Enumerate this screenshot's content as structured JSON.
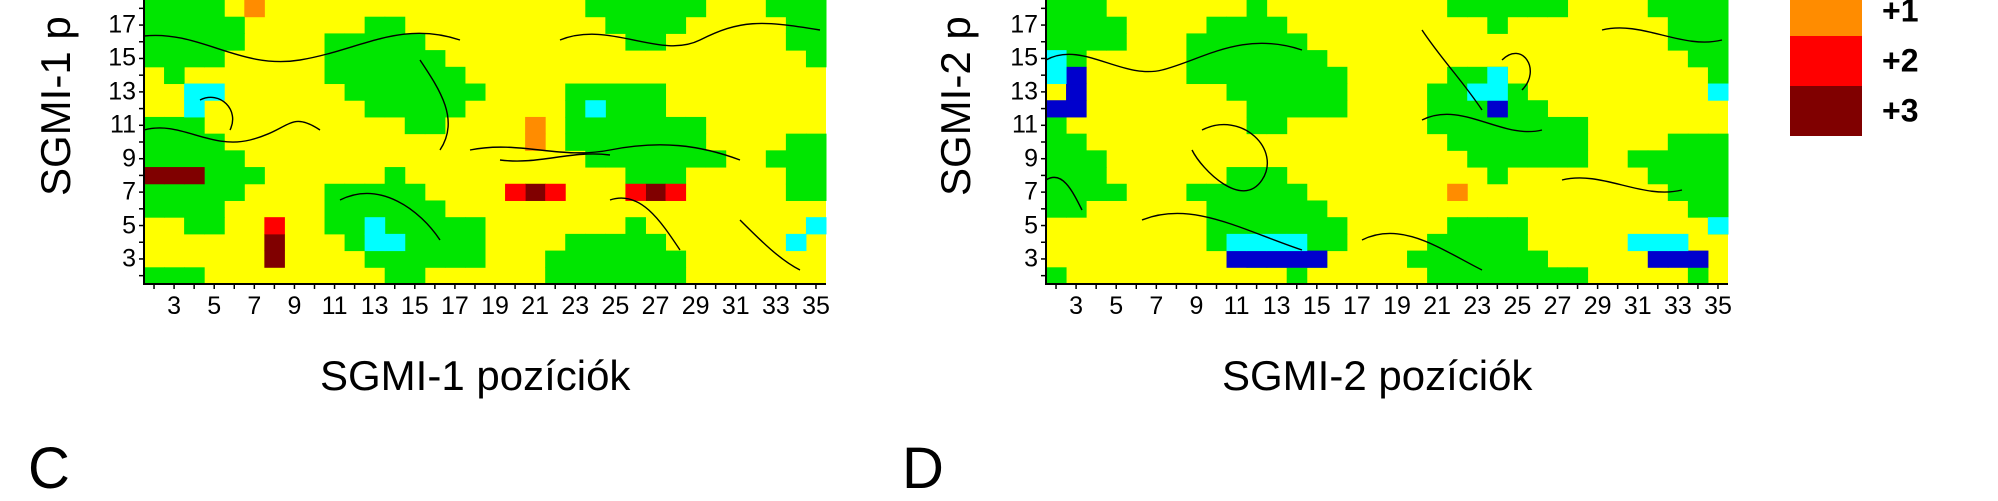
{
  "chart_data": [
    {
      "type": "heatmap",
      "xlabel": "SGMI-1 pozíciók",
      "ylabel": "SGMI-1 p",
      "xticks": [
        "3",
        "5",
        "7",
        "9",
        "11",
        "13",
        "15",
        "17",
        "19",
        "21",
        "23",
        "25",
        "27",
        "29",
        "31",
        "33",
        "35"
      ],
      "yticks": [
        "3",
        "5",
        "7",
        "9",
        "11",
        "13",
        "15",
        "17"
      ],
      "xlim": [
        2,
        35
      ],
      "ylim": [
        2,
        18
      ],
      "cells": [
        {
          "x": 8,
          "y": 3,
          "level": 3
        },
        {
          "x": 8,
          "y": 4,
          "level": 3
        },
        {
          "x": 8,
          "y": 5,
          "level": 2
        },
        {
          "x": 2,
          "y": 8,
          "level": 3
        },
        {
          "x": 3,
          "y": 8,
          "level": 3
        },
        {
          "x": 4,
          "y": 8,
          "level": 3
        },
        {
          "x": 21,
          "y": 7,
          "level": 3
        },
        {
          "x": 27,
          "y": 7,
          "level": 3
        },
        {
          "x": 20,
          "y": 7,
          "level": 2
        },
        {
          "x": 22,
          "y": 7,
          "level": 2
        },
        {
          "x": 26,
          "y": 7,
          "level": 2
        },
        {
          "x": 28,
          "y": 7,
          "level": 2
        },
        {
          "x": 21,
          "y": 10,
          "level": 1
        },
        {
          "x": 21,
          "y": 11,
          "level": 1
        },
        {
          "x": 7,
          "y": 18,
          "level": 1
        },
        {
          "x": 4,
          "y": 13,
          "level": -1
        },
        {
          "x": 5,
          "y": 13,
          "level": -1
        },
        {
          "x": 4,
          "y": 12,
          "level": -1
        },
        {
          "x": 13,
          "y": 4,
          "level": -1
        },
        {
          "x": 14,
          "y": 4,
          "level": -1
        },
        {
          "x": 13,
          "y": 5,
          "level": -1
        },
        {
          "x": 34,
          "y": 4,
          "level": -1
        },
        {
          "x": 35,
          "y": 5,
          "level": -1
        },
        {
          "x": 24,
          "y": 12,
          "level": -1
        }
      ]
    },
    {
      "type": "heatmap",
      "xlabel": "SGMI-2 pozíciók",
      "ylabel": "SGMI-2 p",
      "xticks": [
        "3",
        "5",
        "7",
        "9",
        "11",
        "13",
        "15",
        "17",
        "19",
        "21",
        "23",
        "25",
        "27",
        "29",
        "31",
        "33",
        "35"
      ],
      "yticks": [
        "3",
        "5",
        "7",
        "9",
        "11",
        "13",
        "15",
        "17"
      ],
      "xlim": [
        2,
        35
      ],
      "ylim": [
        2,
        18
      ],
      "cells": [
        {
          "x": 3,
          "y": 12,
          "level": -3
        },
        {
          "x": 3,
          "y": 13,
          "level": -3
        },
        {
          "x": 3,
          "y": 14,
          "level": -3
        },
        {
          "x": 2,
          "y": 12,
          "level": -2
        },
        {
          "x": 2,
          "y": 15,
          "level": -1
        },
        {
          "x": 2,
          "y": 14,
          "level": -1
        },
        {
          "x": 13,
          "y": 3,
          "level": -3
        },
        {
          "x": 14,
          "y": 3,
          "level": -3
        },
        {
          "x": 15,
          "y": 3,
          "level": -3
        },
        {
          "x": 12,
          "y": 3,
          "level": -3
        },
        {
          "x": 11,
          "y": 3,
          "level": -3
        },
        {
          "x": 12,
          "y": 4,
          "level": -1
        },
        {
          "x": 13,
          "y": 4,
          "level": -1
        },
        {
          "x": 14,
          "y": 4,
          "level": -1
        },
        {
          "x": 11,
          "y": 4,
          "level": -1
        },
        {
          "x": 32,
          "y": 3,
          "level": -3
        },
        {
          "x": 33,
          "y": 3,
          "level": -3
        },
        {
          "x": 34,
          "y": 3,
          "level": -3
        },
        {
          "x": 31,
          "y": 4,
          "level": -1
        },
        {
          "x": 32,
          "y": 4,
          "level": -1
        },
        {
          "x": 33,
          "y": 4,
          "level": -1
        },
        {
          "x": 24,
          "y": 12,
          "level": -3
        },
        {
          "x": 24,
          "y": 13,
          "level": -1
        },
        {
          "x": 23,
          "y": 13,
          "level": -1
        },
        {
          "x": 24,
          "y": 14,
          "level": -1
        },
        {
          "x": 35,
          "y": 13,
          "level": -1
        },
        {
          "x": 35,
          "y": 5,
          "level": -1
        },
        {
          "x": 22,
          "y": 7,
          "level": 1
        }
      ]
    }
  ],
  "legend": [
    {
      "label": "+1",
      "color": "#ff8c00"
    },
    {
      "label": "+2",
      "color": "#ff0000"
    },
    {
      "label": "+3",
      "color": "#800000"
    }
  ],
  "colors": {
    "minus3": "#0000cd",
    "minus1": "#00ffff",
    "zero": "#00e600",
    "plus_small": "#ffff00",
    "plus1": "#ff8c00",
    "plus2": "#ff0000",
    "plus3": "#800000"
  },
  "panels": {
    "c_letter": "C",
    "d_letter": "D"
  }
}
